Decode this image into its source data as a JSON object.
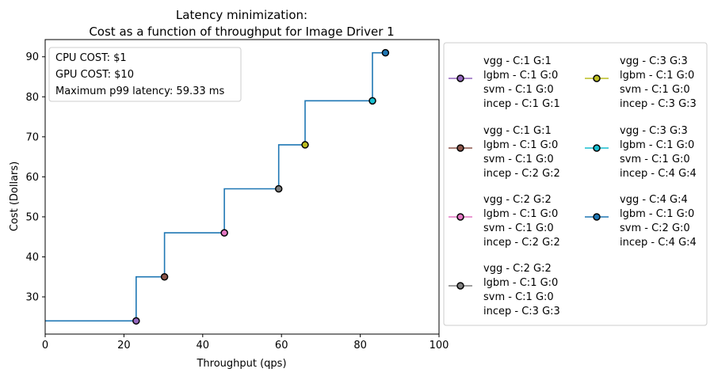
{
  "chart_data": {
    "type": "line",
    "title": "Latency minimization:",
    "subtitle": "Cost as a function of throughput for Image Driver 1",
    "xlabel": "Throughput (qps)",
    "ylabel": "Cost (Dollars)",
    "xlim": [
      0,
      100
    ],
    "ylim": [
      20.7,
      94.3
    ],
    "x_ticks": [
      0,
      20,
      40,
      60,
      80,
      100
    ],
    "y_ticks": [
      30,
      40,
      50,
      60,
      70,
      80,
      90
    ],
    "grid": false,
    "step_line_color": "#1f77b4",
    "step_line": {
      "x": [
        0,
        23.1,
        23.1,
        30.3,
        30.3,
        45.5,
        45.5,
        59.3,
        59.3,
        66.0,
        66.0,
        83.1,
        83.1,
        86.4
      ],
      "y": [
        24,
        24,
        35,
        35,
        46,
        46,
        57,
        57,
        68,
        68,
        79,
        79,
        91,
        91
      ]
    },
    "info_box": {
      "cpu_cost": "CPU COST: $1",
      "gpu_cost": "GPU COST: $10",
      "latency": "Maximum p99 latency: 59.33 ms"
    },
    "legend_position": "outside-right",
    "series": [
      {
        "name": [
          "vgg - C:1 G:1",
          "lgbm - C:1 G:0",
          "svm - C:1 G:0",
          "incep - C:1 G:1"
        ],
        "color": "#9467bd",
        "x": 23.1,
        "y": 24
      },
      {
        "name": [
          "vgg - C:1 G:1",
          "lgbm - C:1 G:0",
          "svm - C:1 G:0",
          "incep - C:2 G:2"
        ],
        "color": "#8c564b",
        "x": 30.3,
        "y": 35
      },
      {
        "name": [
          "vgg - C:2 G:2",
          "lgbm - C:1 G:0",
          "svm - C:1 G:0",
          "incep - C:2 G:2"
        ],
        "color": "#e377c2",
        "x": 45.5,
        "y": 46
      },
      {
        "name": [
          "vgg - C:2 G:2",
          "lgbm - C:1 G:0",
          "svm - C:1 G:0",
          "incep - C:3 G:3"
        ],
        "color": "#7f7f7f",
        "x": 59.3,
        "y": 57
      },
      {
        "name": [
          "vgg - C:3 G:3",
          "lgbm - C:1 G:0",
          "svm - C:1 G:0",
          "incep - C:3 G:3"
        ],
        "color": "#bcbd22",
        "x": 66.0,
        "y": 68
      },
      {
        "name": [
          "vgg - C:3 G:3",
          "lgbm - C:1 G:0",
          "svm - C:1 G:0",
          "incep - C:4 G:4"
        ],
        "color": "#17becf",
        "x": 83.1,
        "y": 79
      },
      {
        "name": [
          "vgg - C:4 G:4",
          "lgbm - C:1 G:0",
          "svm - C:2 G:0",
          "incep - C:4 G:4"
        ],
        "color": "#1f77b4",
        "x": 86.4,
        "y": 91
      }
    ]
  }
}
